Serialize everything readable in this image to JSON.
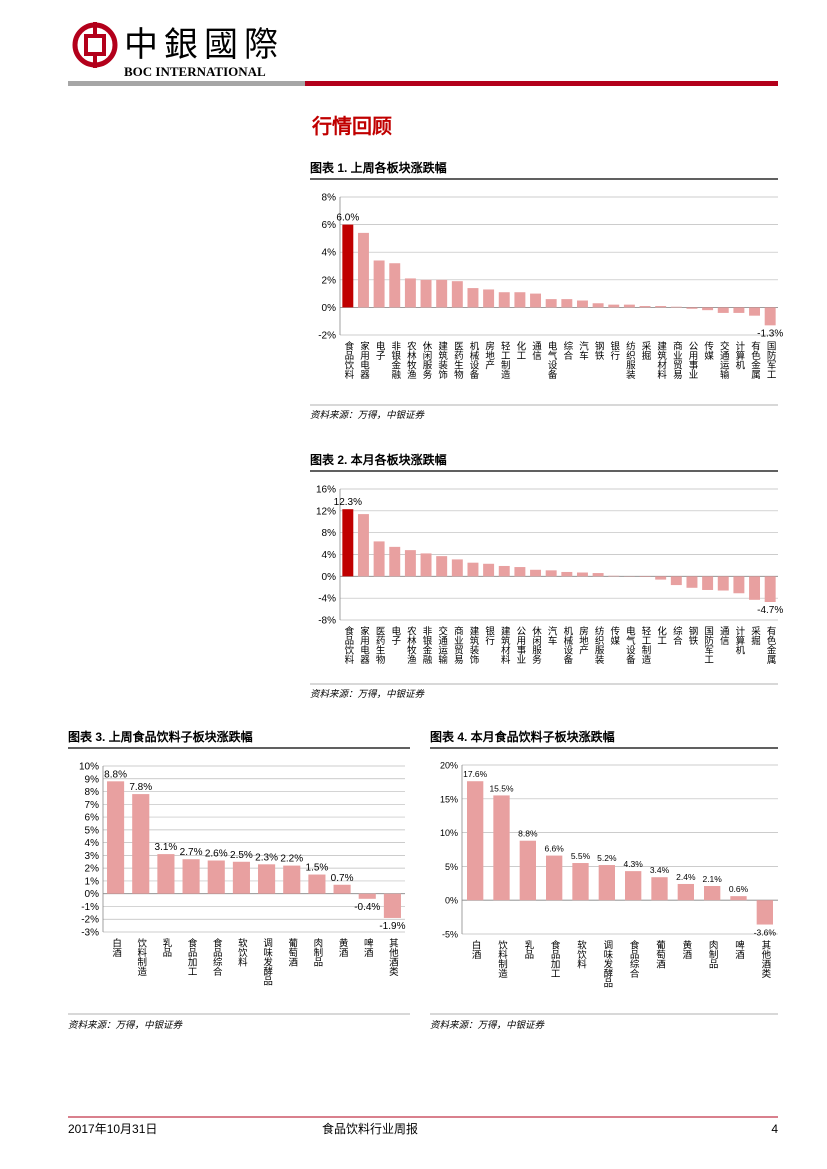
{
  "header": {
    "brand_cn": "中銀國際",
    "brand_en": "BOC INTERNATIONAL"
  },
  "section_title": "行情回顾",
  "footer": {
    "date": "2017年10月31日",
    "report": "食品饮料行业周报",
    "page": "4"
  },
  "chart_data": [
    {
      "type": "bar",
      "title": "图表 1. 上周各板块涨跌幅",
      "source": "资料来源：万得，中银证券",
      "categories": [
        "食品饮料",
        "家用电器",
        "电子",
        "非银金融",
        "农林牧渔",
        "休闲服务",
        "建筑装饰",
        "医药生物",
        "机械设备",
        "房地产",
        "轻工制造",
        "化工",
        "通信",
        "电气设备",
        "综合",
        "汽车",
        "钢铁",
        "银行",
        "纺织服装",
        "采掘",
        "建筑材料",
        "商业贸易",
        "公用事业",
        "传媒",
        "交通运输",
        "计算机",
        "有色金属",
        "国防军工"
      ],
      "values": [
        6.0,
        5.4,
        3.4,
        3.2,
        2.1,
        2.0,
        2.0,
        1.9,
        1.4,
        1.3,
        1.1,
        1.1,
        1.0,
        0.6,
        0.6,
        0.5,
        0.3,
        0.2,
        0.2,
        0.1,
        0.1,
        0.05,
        -0.1,
        -0.2,
        -0.4,
        -0.4,
        -0.6,
        -1.3
      ],
      "value_labels": [
        "6.0%",
        null,
        null,
        null,
        null,
        null,
        null,
        null,
        null,
        null,
        null,
        null,
        null,
        null,
        null,
        null,
        null,
        null,
        null,
        null,
        null,
        null,
        null,
        null,
        null,
        null,
        null,
        "-1.3%"
      ],
      "colors": [
        "#c00000",
        "#e8a0a0",
        "#e8a0a0",
        "#e8a0a0",
        "#e8a0a0",
        "#e8a0a0",
        "#e8a0a0",
        "#e8a0a0",
        "#e8a0a0",
        "#e8a0a0",
        "#e8a0a0",
        "#e8a0a0",
        "#e8a0a0",
        "#e8a0a0",
        "#e8a0a0",
        "#e8a0a0",
        "#e8a0a0",
        "#e8a0a0",
        "#e8a0a0",
        "#e8a0a0",
        "#e8a0a0",
        "#e8a0a0",
        "#e8a0a0",
        "#e8a0a0",
        "#e8a0a0",
        "#e8a0a0",
        "#e8a0a0",
        "#e8a0a0"
      ],
      "ylim": [
        -2,
        8
      ],
      "yticks": [
        {
          "value": -2,
          "label": "-2%"
        },
        {
          "value": 0,
          "label": "0%"
        },
        {
          "value": 2,
          "label": "2%"
        },
        {
          "value": 4,
          "label": "4%"
        },
        {
          "value": 6,
          "label": "6%"
        },
        {
          "value": 8,
          "label": "8%"
        }
      ],
      "grid": true
    },
    {
      "type": "bar",
      "title": "图表 2. 本月各板块涨跌幅",
      "source": "资料来源：万得，中银证券",
      "categories": [
        "食品饮料",
        "家用电器",
        "医药生物",
        "电子",
        "农林牧渔",
        "非银金融",
        "交通运输",
        "商业贸易",
        "建筑装饰",
        "银行",
        "建筑材料",
        "公用事业",
        "休闲服务",
        "汽车",
        "机械设备",
        "房地产",
        "纺织服装",
        "传媒",
        "电气设备",
        "轻工制造",
        "化工",
        "综合",
        "钢铁",
        "国防军工",
        "通信",
        "计算机",
        "采掘",
        "有色金属"
      ],
      "values": [
        12.3,
        11.4,
        6.4,
        5.4,
        4.8,
        4.2,
        3.7,
        3.1,
        2.5,
        2.3,
        1.9,
        1.7,
        1.2,
        1.1,
        0.8,
        0.7,
        0.6,
        0.1,
        0.0,
        -0.1,
        -0.6,
        -1.6,
        -2.1,
        -2.5,
        -2.6,
        -3.1,
        -4.3,
        -4.7
      ],
      "value_labels": [
        "12.3%",
        null,
        null,
        null,
        null,
        null,
        null,
        null,
        null,
        null,
        null,
        null,
        null,
        null,
        null,
        null,
        null,
        null,
        null,
        null,
        null,
        null,
        null,
        null,
        null,
        null,
        null,
        "-4.7%"
      ],
      "colors": [
        "#c00000",
        "#e8a0a0",
        "#e8a0a0",
        "#e8a0a0",
        "#e8a0a0",
        "#e8a0a0",
        "#e8a0a0",
        "#e8a0a0",
        "#e8a0a0",
        "#e8a0a0",
        "#e8a0a0",
        "#e8a0a0",
        "#e8a0a0",
        "#e8a0a0",
        "#e8a0a0",
        "#e8a0a0",
        "#e8a0a0",
        "#e8a0a0",
        "#e8a0a0",
        "#e8a0a0",
        "#e8a0a0",
        "#e8a0a0",
        "#e8a0a0",
        "#e8a0a0",
        "#e8a0a0",
        "#e8a0a0",
        "#e8a0a0",
        "#e8a0a0"
      ],
      "ylim": [
        -8,
        16
      ],
      "yticks": [
        {
          "value": -8,
          "label": "-8%"
        },
        {
          "value": -4,
          "label": "-4%"
        },
        {
          "value": 0,
          "label": "0%"
        },
        {
          "value": 4,
          "label": "4%"
        },
        {
          "value": 8,
          "label": "8%"
        },
        {
          "value": 12,
          "label": "12%"
        },
        {
          "value": 16,
          "label": "16%"
        }
      ],
      "grid": true
    },
    {
      "type": "bar",
      "title": "图表 3. 上周食品饮料子板块涨跌幅",
      "source": "资料来源：万得，中银证券",
      "categories": [
        "白酒",
        "饮料制造",
        "乳品",
        "食品加工",
        "食品综合",
        "软饮料",
        "调味发酵品",
        "葡萄酒",
        "肉制品",
        "黄酒",
        "啤酒",
        "其他酒类"
      ],
      "values": [
        8.8,
        7.8,
        3.1,
        2.7,
        2.6,
        2.5,
        2.3,
        2.2,
        1.5,
        0.7,
        -0.4,
        -1.9
      ],
      "value_labels": [
        "8.8%",
        "7.8%",
        "3.1%",
        "2.7%",
        "2.6%",
        "2.5%",
        "2.3%",
        "2.2%",
        "1.5%",
        "0.7%",
        "-0.4%",
        "-1.9%"
      ],
      "color": "#e8a0a0",
      "ylim": [
        -3,
        10
      ],
      "yticks": [
        {
          "value": -3,
          "label": "-3%"
        },
        {
          "value": -2,
          "label": "-2%"
        },
        {
          "value": -1,
          "label": "-1%"
        },
        {
          "value": 0,
          "label": "0%"
        },
        {
          "value": 1,
          "label": "1%"
        },
        {
          "value": 2,
          "label": "2%"
        },
        {
          "value": 3,
          "label": "3%"
        },
        {
          "value": 4,
          "label": "4%"
        },
        {
          "value": 5,
          "label": "5%"
        },
        {
          "value": 6,
          "label": "6%"
        },
        {
          "value": 7,
          "label": "7%"
        },
        {
          "value": 8,
          "label": "8%"
        },
        {
          "value": 9,
          "label": "9%"
        },
        {
          "value": 10,
          "label": "10%"
        }
      ],
      "grid": true
    },
    {
      "type": "bar",
      "title": "图表 4. 本月食品饮料子板块涨跌幅",
      "source": "资料来源：万得，中银证券",
      "categories": [
        "白酒",
        "饮料制造",
        "乳品",
        "食品加工",
        "软饮料",
        "调味发酵品",
        "食品综合",
        "葡萄酒",
        "黄酒",
        "肉制品",
        "啤酒",
        "其他酒类"
      ],
      "values": [
        17.6,
        15.5,
        8.8,
        6.6,
        5.5,
        5.2,
        4.3,
        3.4,
        2.4,
        2.1,
        0.6,
        -3.6
      ],
      "value_labels": [
        "17.6%",
        "15.5%",
        "8.8%",
        "6.6%",
        "5.5%",
        "5.2%",
        "4.3%",
        "3.4%",
        "2.4%",
        "2.1%",
        "0.6%",
        "-3.6%"
      ],
      "color": "#e8a0a0",
      "ylim": [
        -5,
        20
      ],
      "yticks": [
        {
          "value": -5,
          "label": "-5%"
        },
        {
          "value": 0,
          "label": "0%"
        },
        {
          "value": 5,
          "label": "5%"
        },
        {
          "value": 10,
          "label": "10%"
        },
        {
          "value": 15,
          "label": "15%"
        },
        {
          "value": 20,
          "label": "20%"
        }
      ],
      "grid": true
    }
  ]
}
